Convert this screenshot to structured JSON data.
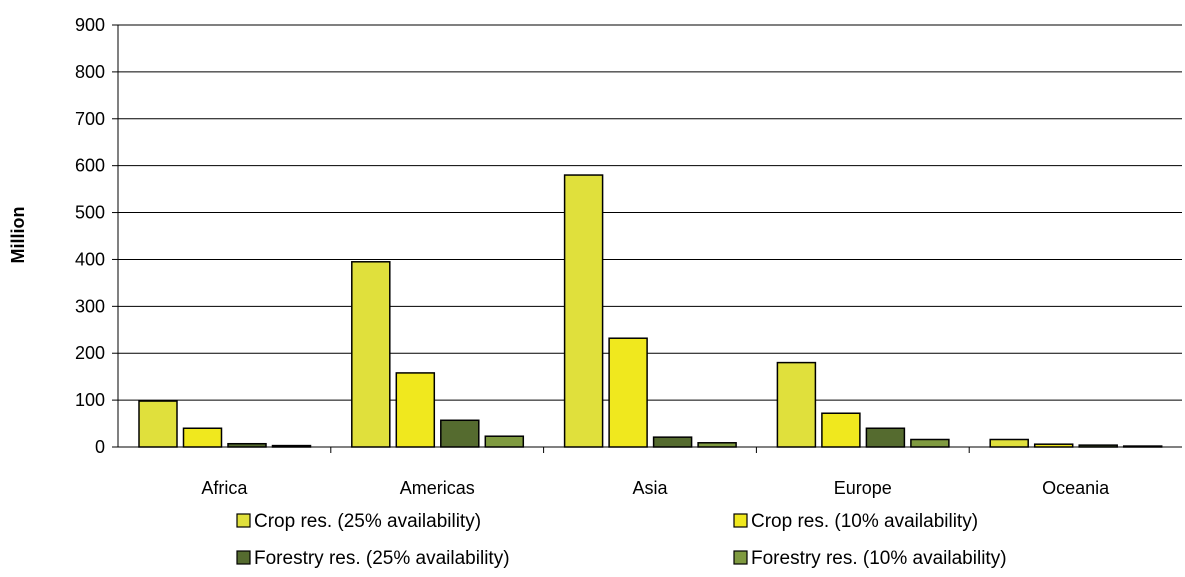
{
  "chart_data": {
    "type": "bar",
    "title": "",
    "xlabel": "",
    "ylabel": "Million",
    "ylim": [
      0,
      900
    ],
    "yticks": [
      0,
      100,
      200,
      300,
      400,
      500,
      600,
      700,
      800,
      900
    ],
    "grid": true,
    "legend_position": "bottom",
    "categories": [
      "Africa",
      "Americas",
      "Asia",
      "Europe",
      "Oceania"
    ],
    "series": [
      {
        "name": "Crop res. (25% availability)",
        "color": "#e0e03c",
        "values": [
          98,
          395,
          580,
          180,
          16
        ]
      },
      {
        "name": "Crop res. (10% availability)",
        "color": "#f0e81e",
        "values": [
          40,
          158,
          232,
          72,
          6
        ]
      },
      {
        "name": "Forestry res. (25% availability)",
        "color": "#556b2f",
        "values": [
          7,
          57,
          21,
          40,
          4
        ]
      },
      {
        "name": "Forestry res. (10% availability)",
        "color": "#7f9a40",
        "values": [
          3,
          23,
          9,
          16,
          2
        ]
      }
    ]
  }
}
